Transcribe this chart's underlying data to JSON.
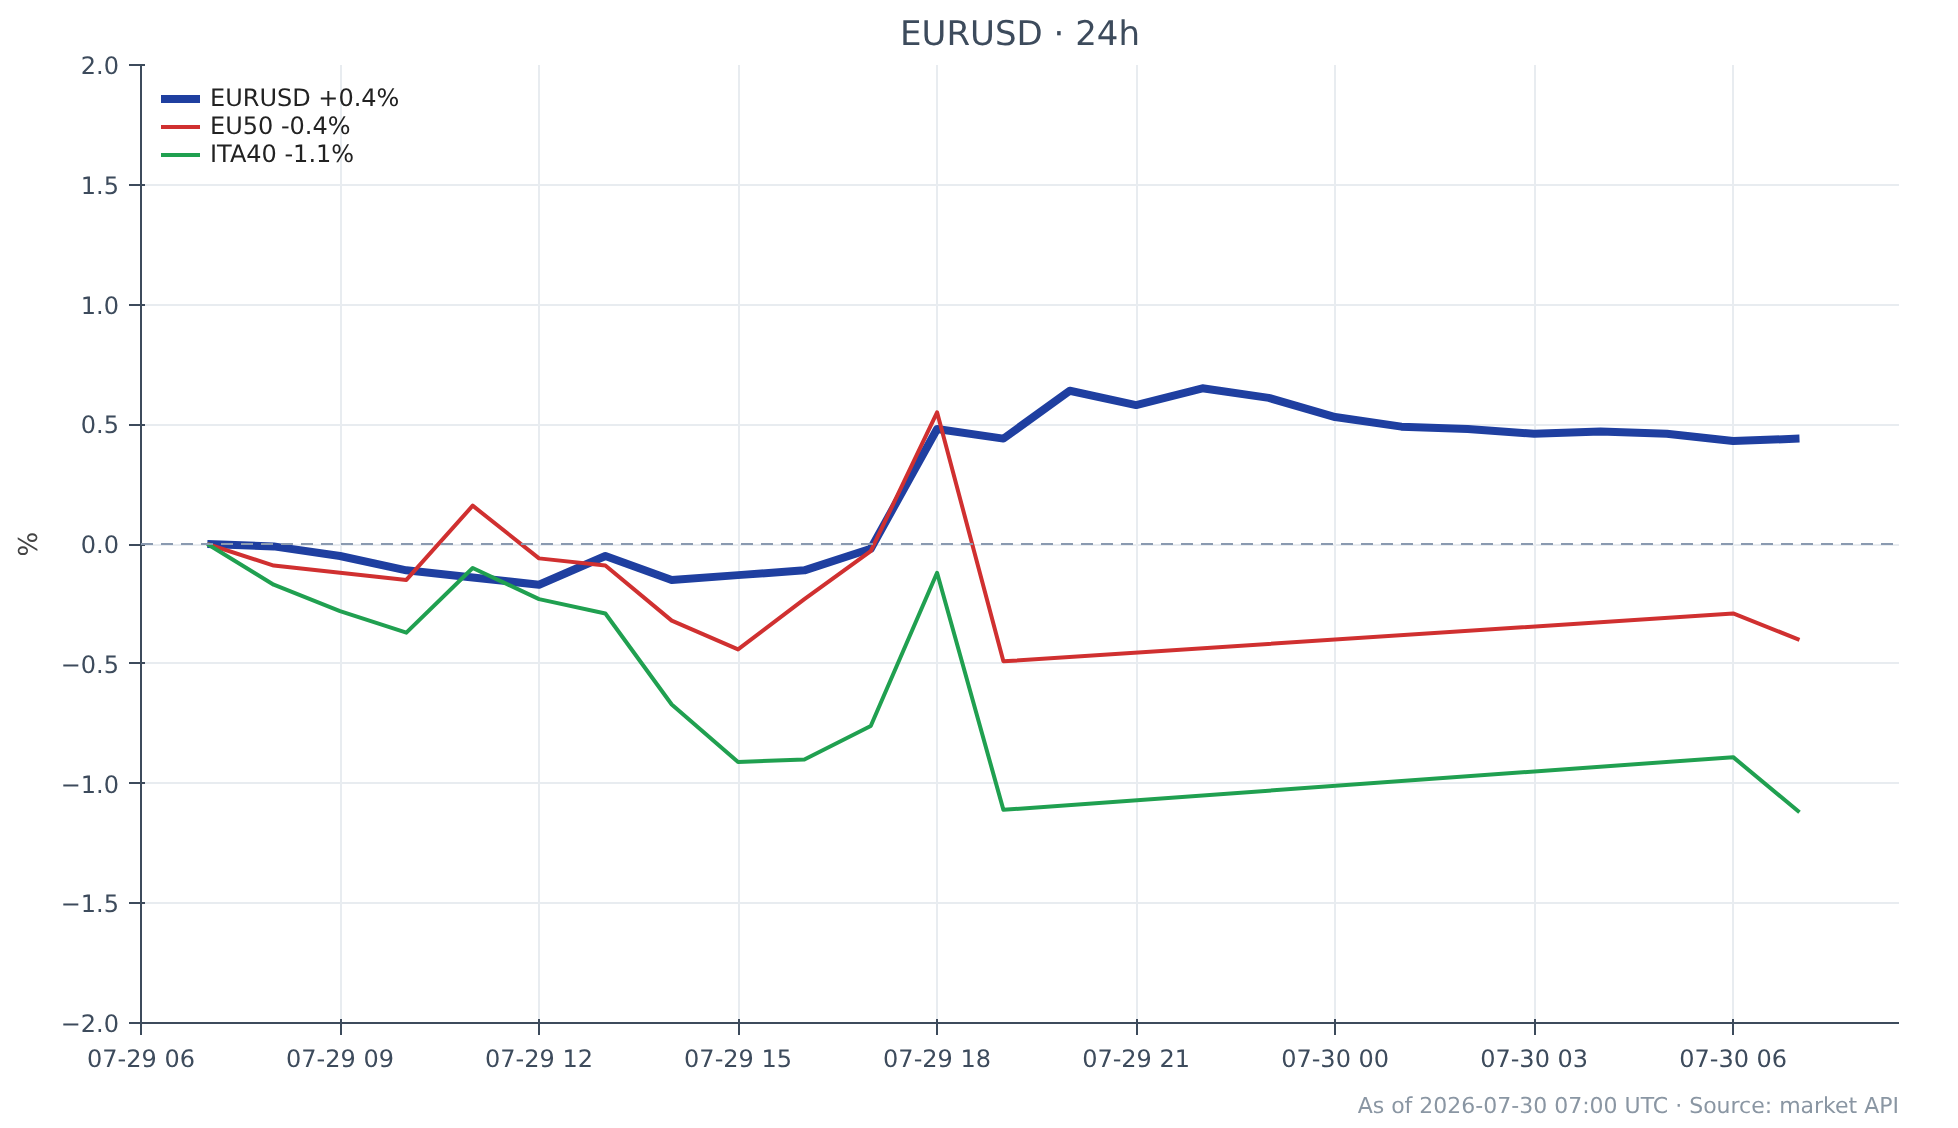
{
  "chart_data": {
    "type": "line",
    "title": "EURUSD · 24h",
    "ylabel": "%",
    "x": [
      "2026-07-29T07:00",
      "2026-07-29T08:00",
      "2026-07-29T09:00",
      "2026-07-29T10:00",
      "2026-07-29T11:00",
      "2026-07-29T12:00",
      "2026-07-29T13:00",
      "2026-07-29T14:00",
      "2026-07-29T15:00",
      "2026-07-29T16:00",
      "2026-07-29T17:00",
      "2026-07-29T18:00",
      "2026-07-29T19:00",
      "2026-07-29T20:00",
      "2026-07-29T21:00",
      "2026-07-29T22:00",
      "2026-07-29T23:00",
      "2026-07-30T00:00",
      "2026-07-30T01:00",
      "2026-07-30T02:00",
      "2026-07-30T03:00",
      "2026-07-30T04:00",
      "2026-07-30T05:00",
      "2026-07-30T06:00",
      "2026-07-30T07:00"
    ],
    "series": [
      {
        "name": "EURUSD +0.4%",
        "color": "#1f3fa0",
        "values": [
          0.0,
          -0.01,
          -0.05,
          -0.11,
          -0.14,
          -0.17,
          -0.05,
          -0.15,
          -0.13,
          -0.11,
          -0.02,
          0.48,
          0.44,
          0.64,
          0.58,
          0.65,
          0.61,
          0.53,
          0.49,
          0.48,
          0.46,
          0.47,
          0.46,
          0.43,
          0.44
        ]
      },
      {
        "name": "EU50 -0.4%",
        "color": "#d03030",
        "x": [
          "2026-07-29T07:00",
          "2026-07-29T08:00",
          "2026-07-29T09:00",
          "2026-07-29T10:00",
          "2026-07-29T11:00",
          "2026-07-29T12:00",
          "2026-07-29T13:00",
          "2026-07-29T14:00",
          "2026-07-29T15:00",
          "2026-07-29T16:00",
          "2026-07-29T17:00",
          "2026-07-29T18:00",
          "2026-07-29T19:00",
          "2026-07-30T06:00",
          "2026-07-30T07:00"
        ],
        "values": [
          0.0,
          -0.09,
          -0.12,
          -0.15,
          0.16,
          -0.06,
          -0.09,
          -0.32,
          -0.44,
          -0.23,
          -0.03,
          0.55,
          -0.49,
          -0.29,
          -0.4
        ]
      },
      {
        "name": "ITA40 -1.1%",
        "color": "#20a050",
        "x": [
          "2026-07-29T07:00",
          "2026-07-29T08:00",
          "2026-07-29T09:00",
          "2026-07-29T10:00",
          "2026-07-29T11:00",
          "2026-07-29T12:00",
          "2026-07-29T13:00",
          "2026-07-29T14:00",
          "2026-07-29T15:00",
          "2026-07-29T16:00",
          "2026-07-29T17:00",
          "2026-07-29T18:00",
          "2026-07-29T19:00",
          "2026-07-30T06:00",
          "2026-07-30T07:00"
        ],
        "values": [
          0.0,
          -0.17,
          -0.28,
          -0.37,
          -0.1,
          -0.23,
          -0.29,
          -0.67,
          -0.91,
          -0.9,
          -0.76,
          -0.12,
          -1.11,
          -0.89,
          -1.12
        ]
      }
    ],
    "xlim": [
      "2026-07-29T06:00",
      "2026-07-30T08:30"
    ],
    "xticks": [
      {
        "value": "2026-07-29T06:00",
        "label": "07-29 06"
      },
      {
        "value": "2026-07-29T09:00",
        "label": "07-29 09"
      },
      {
        "value": "2026-07-29T12:00",
        "label": "07-29 12"
      },
      {
        "value": "2026-07-29T15:00",
        "label": "07-29 15"
      },
      {
        "value": "2026-07-29T18:00",
        "label": "07-29 18"
      },
      {
        "value": "2026-07-29T21:00",
        "label": "07-29 21"
      },
      {
        "value": "2026-07-30T00:00",
        "label": "07-30 00"
      },
      {
        "value": "2026-07-30T03:00",
        "label": "07-30 03"
      },
      {
        "value": "2026-07-30T06:00",
        "label": "07-30 06"
      }
    ],
    "ylim": [
      -2.0,
      2.0
    ],
    "yticks": [
      {
        "value": -2.0,
        "label": "−2.0"
      },
      {
        "value": -1.5,
        "label": "−1.5"
      },
      {
        "value": -1.0,
        "label": "−1.0"
      },
      {
        "value": -0.5,
        "label": "−0.5"
      },
      {
        "value": 0.0,
        "label": "0.0"
      },
      {
        "value": 0.5,
        "label": "0.5"
      },
      {
        "value": 1.0,
        "label": "1.0"
      },
      {
        "value": 1.5,
        "label": "1.5"
      },
      {
        "value": 2.0,
        "label": "2.0"
      }
    ],
    "ref_lines": [
      {
        "axis": "y",
        "value": 0,
        "color": "#8a9ab0",
        "line_style": "dashed"
      }
    ],
    "grid": true,
    "legend": "top left",
    "line_style": "solid",
    "annotations": [
      "As of 2026-07-30 07:00 UTC · Source: market API"
    ]
  }
}
